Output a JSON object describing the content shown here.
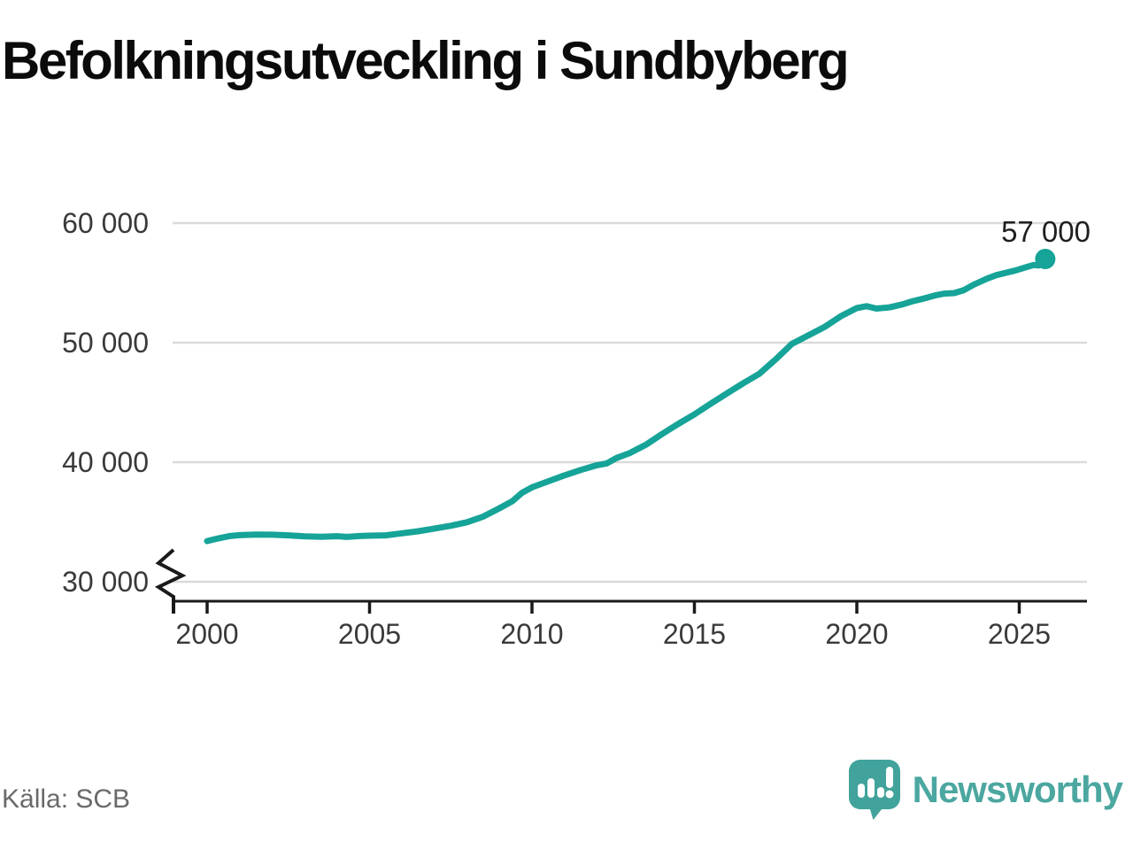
{
  "title": "Befolkningsutveckling i Sundbyberg",
  "source": "Källa: SCB",
  "logo": {
    "text": "Newsworthy"
  },
  "colors": {
    "line": "#16a398",
    "grid": "#dadada",
    "axis": "#1a1a1a",
    "tick_label": "#3a3a3a",
    "end_label": "#1f1f1f",
    "logo_teal": "#4ba7a0",
    "logo_icon_teal": "#41a39b"
  },
  "chart_data": {
    "type": "line",
    "title": "Befolkningsutveckling i Sundbyberg",
    "xlabel": "",
    "ylabel": "",
    "x_range": [
      2000,
      2026
    ],
    "y_axis_break": true,
    "grid": "horizontal",
    "y_ticks": [
      {
        "value": 30000,
        "label": "30 000"
      },
      {
        "value": 40000,
        "label": "40 000"
      },
      {
        "value": 50000,
        "label": "50 000"
      },
      {
        "value": 60000,
        "label": "60 000"
      }
    ],
    "x_ticks": [
      {
        "value": 2000,
        "label": "2000"
      },
      {
        "value": 2005,
        "label": "2005"
      },
      {
        "value": 2010,
        "label": "2010"
      },
      {
        "value": 2015,
        "label": "2015"
      },
      {
        "value": 2020,
        "label": "2020"
      },
      {
        "value": 2025,
        "label": "2025"
      }
    ],
    "end_label": "57 000",
    "series": [
      {
        "name": "Sundbyberg",
        "points": [
          [
            2000.0,
            33400
          ],
          [
            2000.3,
            33600
          ],
          [
            2000.7,
            33820
          ],
          [
            2001.0,
            33900
          ],
          [
            2001.5,
            33950
          ],
          [
            2002.0,
            33930
          ],
          [
            2002.5,
            33880
          ],
          [
            2003.0,
            33800
          ],
          [
            2003.5,
            33760
          ],
          [
            2004.0,
            33810
          ],
          [
            2004.3,
            33750
          ],
          [
            2004.7,
            33820
          ],
          [
            2005.0,
            33850
          ],
          [
            2005.5,
            33880
          ],
          [
            2006.0,
            34050
          ],
          [
            2006.5,
            34220
          ],
          [
            2007.0,
            34450
          ],
          [
            2007.5,
            34680
          ],
          [
            2008.0,
            34980
          ],
          [
            2008.5,
            35450
          ],
          [
            2009.0,
            36150
          ],
          [
            2009.4,
            36750
          ],
          [
            2009.7,
            37450
          ],
          [
            2010.0,
            37900
          ],
          [
            2010.5,
            38400
          ],
          [
            2011.0,
            38900
          ],
          [
            2011.5,
            39350
          ],
          [
            2012.0,
            39750
          ],
          [
            2012.3,
            39900
          ],
          [
            2012.6,
            40350
          ],
          [
            2013.0,
            40750
          ],
          [
            2013.5,
            41450
          ],
          [
            2014.0,
            42350
          ],
          [
            2014.5,
            43200
          ],
          [
            2015.0,
            44000
          ],
          [
            2015.5,
            44900
          ],
          [
            2016.0,
            45750
          ],
          [
            2016.5,
            46600
          ],
          [
            2017.0,
            47400
          ],
          [
            2017.5,
            48600
          ],
          [
            2018.0,
            49900
          ],
          [
            2018.5,
            50600
          ],
          [
            2019.0,
            51300
          ],
          [
            2019.5,
            52200
          ],
          [
            2020.0,
            52900
          ],
          [
            2020.3,
            53050
          ],
          [
            2020.6,
            52850
          ],
          [
            2021.0,
            52950
          ],
          [
            2021.4,
            53200
          ],
          [
            2021.7,
            53450
          ],
          [
            2022.0,
            53650
          ],
          [
            2022.4,
            53950
          ],
          [
            2022.7,
            54100
          ],
          [
            2023.0,
            54150
          ],
          [
            2023.3,
            54400
          ],
          [
            2023.6,
            54850
          ],
          [
            2024.0,
            55350
          ],
          [
            2024.3,
            55650
          ],
          [
            2024.6,
            55850
          ],
          [
            2024.9,
            56050
          ],
          [
            2025.2,
            56300
          ],
          [
            2025.45,
            56500
          ],
          [
            2025.6,
            56450
          ],
          [
            2025.8,
            57000
          ]
        ]
      }
    ]
  }
}
